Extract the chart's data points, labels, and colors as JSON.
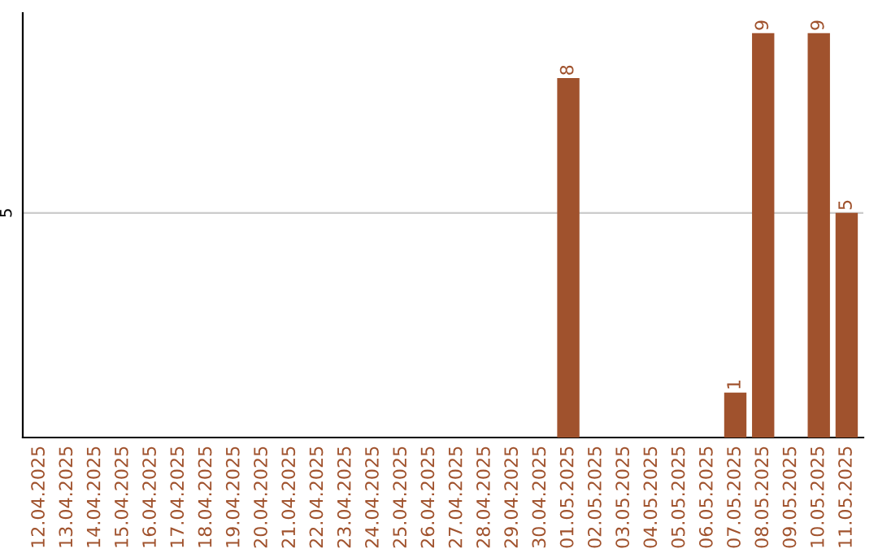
{
  "chart_data": {
    "type": "bar",
    "categories": [
      "12.04.2025",
      "13.04.2025",
      "14.04.2025",
      "15.04.2025",
      "16.04.2025",
      "17.04.2025",
      "18.04.2025",
      "19.04.2025",
      "20.04.2025",
      "21.04.2025",
      "22.04.2025",
      "23.04.2025",
      "24.04.2025",
      "25.04.2025",
      "26.04.2025",
      "27.04.2025",
      "28.04.2025",
      "29.04.2025",
      "30.04.2025",
      "01.05.2025",
      "02.05.2025",
      "03.05.2025",
      "04.05.2025",
      "05.05.2025",
      "06.05.2025",
      "07.05.2025",
      "08.05.2025",
      "09.05.2025",
      "10.05.2025",
      "11.05.2025"
    ],
    "values": [
      null,
      null,
      null,
      null,
      null,
      null,
      null,
      null,
      null,
      null,
      null,
      null,
      null,
      null,
      null,
      null,
      null,
      null,
      null,
      8,
      null,
      null,
      null,
      null,
      null,
      1,
      9,
      null,
      9,
      5
    ],
    "data_labels": true,
    "color": "#a0522d",
    "ylim": [
      0,
      9.45
    ],
    "yticks": [
      5
    ],
    "grid": "y"
  }
}
